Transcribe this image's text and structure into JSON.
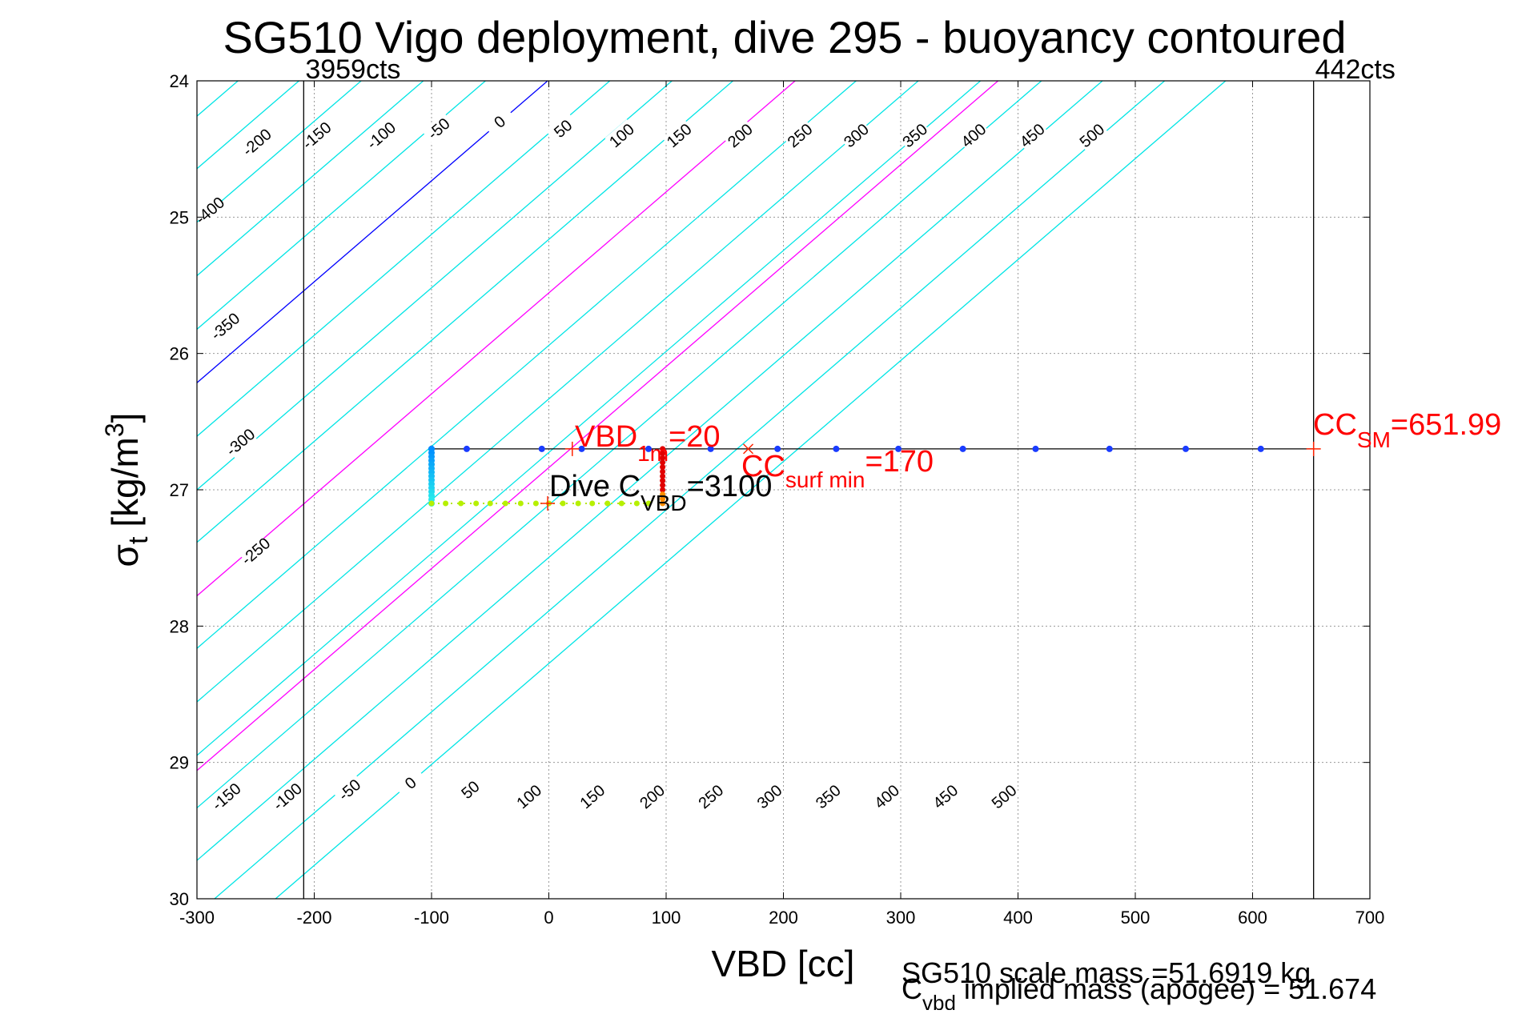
{
  "chart_data": {
    "type": "line",
    "title": "SG510 Vigo deployment, dive 295 - buoyancy contoured",
    "xlabel": "VBD [cc]",
    "ylabel": {
      "sigma": "σ",
      "sub": "t",
      "unit": "[kg/m",
      "sup": "3",
      "close": "]"
    },
    "xlim": [
      -300,
      700
    ],
    "ylim": [
      24,
      30
    ],
    "y_reversed": true,
    "grid": true,
    "x_ticks": [
      -300,
      -200,
      -100,
      0,
      100,
      200,
      300,
      400,
      500,
      600,
      700
    ],
    "y_ticks": [
      24,
      25,
      26,
      27,
      28,
      29,
      30
    ],
    "contour_slope_cc_per_sigma": 135,
    "contour_anchor_sigma": 24,
    "contours": [
      {
        "level": -400,
        "vbd_at_anchor": -420,
        "color": "#00e5e5"
      },
      {
        "level": -350,
        "vbd_at_anchor": -370,
        "color": "#00e5e5"
      },
      {
        "level": -300,
        "vbd_at_anchor": -318,
        "color": "#00e5e5"
      },
      {
        "level": -250,
        "vbd_at_anchor": -265,
        "color": "#00e5e5"
      },
      {
        "level": -200,
        "vbd_at_anchor": -213,
        "color": "#00e5e5"
      },
      {
        "level": -150,
        "vbd_at_anchor": -160,
        "color": "#00e5e5"
      },
      {
        "level": -100,
        "vbd_at_anchor": -107,
        "color": "#00e5e5"
      },
      {
        "level": -50,
        "vbd_at_anchor": -54,
        "color": "#00e5e5"
      },
      {
        "level": 0,
        "vbd_at_anchor": -1,
        "color": "#0000ff"
      },
      {
        "level": 50,
        "vbd_at_anchor": 52,
        "color": "#00e5e5"
      },
      {
        "level": 100,
        "vbd_at_anchor": 105,
        "color": "#00e5e5"
      },
      {
        "level": 150,
        "vbd_at_anchor": 157,
        "color": "#00e5e5"
      },
      {
        "level": 200,
        "vbd_at_anchor": 210,
        "color": "#ff00ff"
      },
      {
        "level": 250,
        "vbd_at_anchor": 262,
        "color": "#00e5e5"
      },
      {
        "level": 300,
        "vbd_at_anchor": 315,
        "color": "#00e5e5"
      },
      {
        "level": 350,
        "vbd_at_anchor": 368,
        "color": "#00e5e5"
      },
      {
        "level": 400,
        "vbd_at_anchor": 420,
        "color": "#00e5e5"
      },
      {
        "level": 450,
        "vbd_at_anchor": 472,
        "color": "#00e5e5"
      },
      {
        "level": 500,
        "vbd_at_anchor": 525,
        "color": "#00e5e5"
      },
      {
        "level": 550,
        "vbd_at_anchor": 577,
        "color": "#00e5e5"
      }
    ],
    "extra_contour": {
      "label": "CC surf min",
      "vbd_at_anchor": 383,
      "color": "#ff00ff"
    },
    "top_labels": [
      {
        "text": "-400",
        "vbd": -289,
        "sigma": 24.95
      },
      {
        "text": "-350",
        "vbd": -276,
        "sigma": 25.8
      },
      {
        "text": "-300",
        "vbd": -263,
        "sigma": 26.65
      },
      {
        "text": "-250",
        "vbd": -250,
        "sigma": 27.45
      },
      {
        "text": "-200",
        "vbd": -249,
        "sigma": 24.45
      },
      {
        "text": "-150",
        "vbd": -198,
        "sigma": 24.4
      },
      {
        "text": "-100",
        "vbd": -143,
        "sigma": 24.4
      },
      {
        "text": "-50",
        "vbd": -94,
        "sigma": 24.35
      },
      {
        "text": "0",
        "vbd": -42,
        "sigma": 24.3
      },
      {
        "text": "50",
        "vbd": 12,
        "sigma": 24.35
      },
      {
        "text": "100",
        "vbd": 62,
        "sigma": 24.4
      },
      {
        "text": "150",
        "vbd": 111,
        "sigma": 24.4
      },
      {
        "text": "200",
        "vbd": 163,
        "sigma": 24.4
      },
      {
        "text": "250",
        "vbd": 214,
        "sigma": 24.4
      },
      {
        "text": "300",
        "vbd": 262,
        "sigma": 24.4
      },
      {
        "text": "350",
        "vbd": 312,
        "sigma": 24.4
      },
      {
        "text": "400",
        "vbd": 362,
        "sigma": 24.4
      },
      {
        "text": "450",
        "vbd": 412,
        "sigma": 24.4
      },
      {
        "text": "500",
        "vbd": 463,
        "sigma": 24.4
      }
    ],
    "bottom_labels": [
      {
        "text": "-150",
        "vbd": -275,
        "sigma": 29.25
      },
      {
        "text": "-100",
        "vbd": -223,
        "sigma": 29.25
      },
      {
        "text": "-50",
        "vbd": -170,
        "sigma": 29.2
      },
      {
        "text": "0",
        "vbd": -118,
        "sigma": 29.15
      },
      {
        "text": "50",
        "vbd": -67,
        "sigma": 29.2
      },
      {
        "text": "100",
        "vbd": -17,
        "sigma": 29.25
      },
      {
        "text": "150",
        "vbd": 37,
        "sigma": 29.25
      },
      {
        "text": "200",
        "vbd": 88,
        "sigma": 29.25
      },
      {
        "text": "250",
        "vbd": 138,
        "sigma": 29.25
      },
      {
        "text": "300",
        "vbd": 188,
        "sigma": 29.25
      },
      {
        "text": "350",
        "vbd": 238,
        "sigma": 29.25
      },
      {
        "text": "400",
        "vbd": 288,
        "sigma": 29.25
      },
      {
        "text": "450",
        "vbd": 338,
        "sigma": 29.25
      },
      {
        "text": "500",
        "vbd": 388,
        "sigma": 29.25
      }
    ],
    "limit_lines": [
      {
        "vbd": -209,
        "label": "3959cts"
      },
      {
        "vbd": 652,
        "label": "442cts"
      }
    ],
    "surface_line": {
      "sigma": 26.7,
      "from": -100,
      "to": 652
    },
    "surface_points": [
      -100,
      -70,
      -6,
      28,
      85,
      138,
      195,
      245,
      298,
      353,
      415,
      478,
      543,
      607
    ],
    "dive_column": {
      "vbd": -100,
      "from_sigma": 26.7,
      "to_sigma": 27.1
    },
    "bottom_points": {
      "sigma": 27.1,
      "values": [
        -100,
        -88,
        -75,
        -62,
        -50,
        -37,
        -24,
        -11,
        0,
        12,
        25,
        37,
        50,
        62,
        75,
        85
      ]
    },
    "apogee_column": {
      "vbd": 97,
      "from_sigma": 26.7,
      "to_sigma": 27.1
    },
    "markers": [
      {
        "vbd": 20,
        "sigma": 26.7,
        "symbol": "+"
      },
      {
        "vbd": 170,
        "sigma": 26.7,
        "symbol": "×"
      },
      {
        "vbd": 652,
        "sigma": 26.7,
        "symbol": "+"
      },
      {
        "vbd": -1,
        "sigma": 27.1,
        "symbol": "+"
      }
    ]
  },
  "annotations": {
    "vbd1m": {
      "main": "VBD",
      "sub": "1m",
      "value": "=20"
    },
    "ccsurf": {
      "main": "CC",
      "sub": "surf min",
      "value": "=170"
    },
    "ccsm": {
      "main": "CC",
      "sub": "SM",
      "value": "=651.99"
    },
    "divecvbd": {
      "main": "Dive C",
      "sub": "VBD",
      "value": "=3100"
    }
  },
  "footer": {
    "scale_mass": "SG510 scale mass =51.6919 kg",
    "implied_c": "C",
    "implied_sub": "vbd",
    "implied_rest": " implied mass (apogee) = 51.674"
  }
}
